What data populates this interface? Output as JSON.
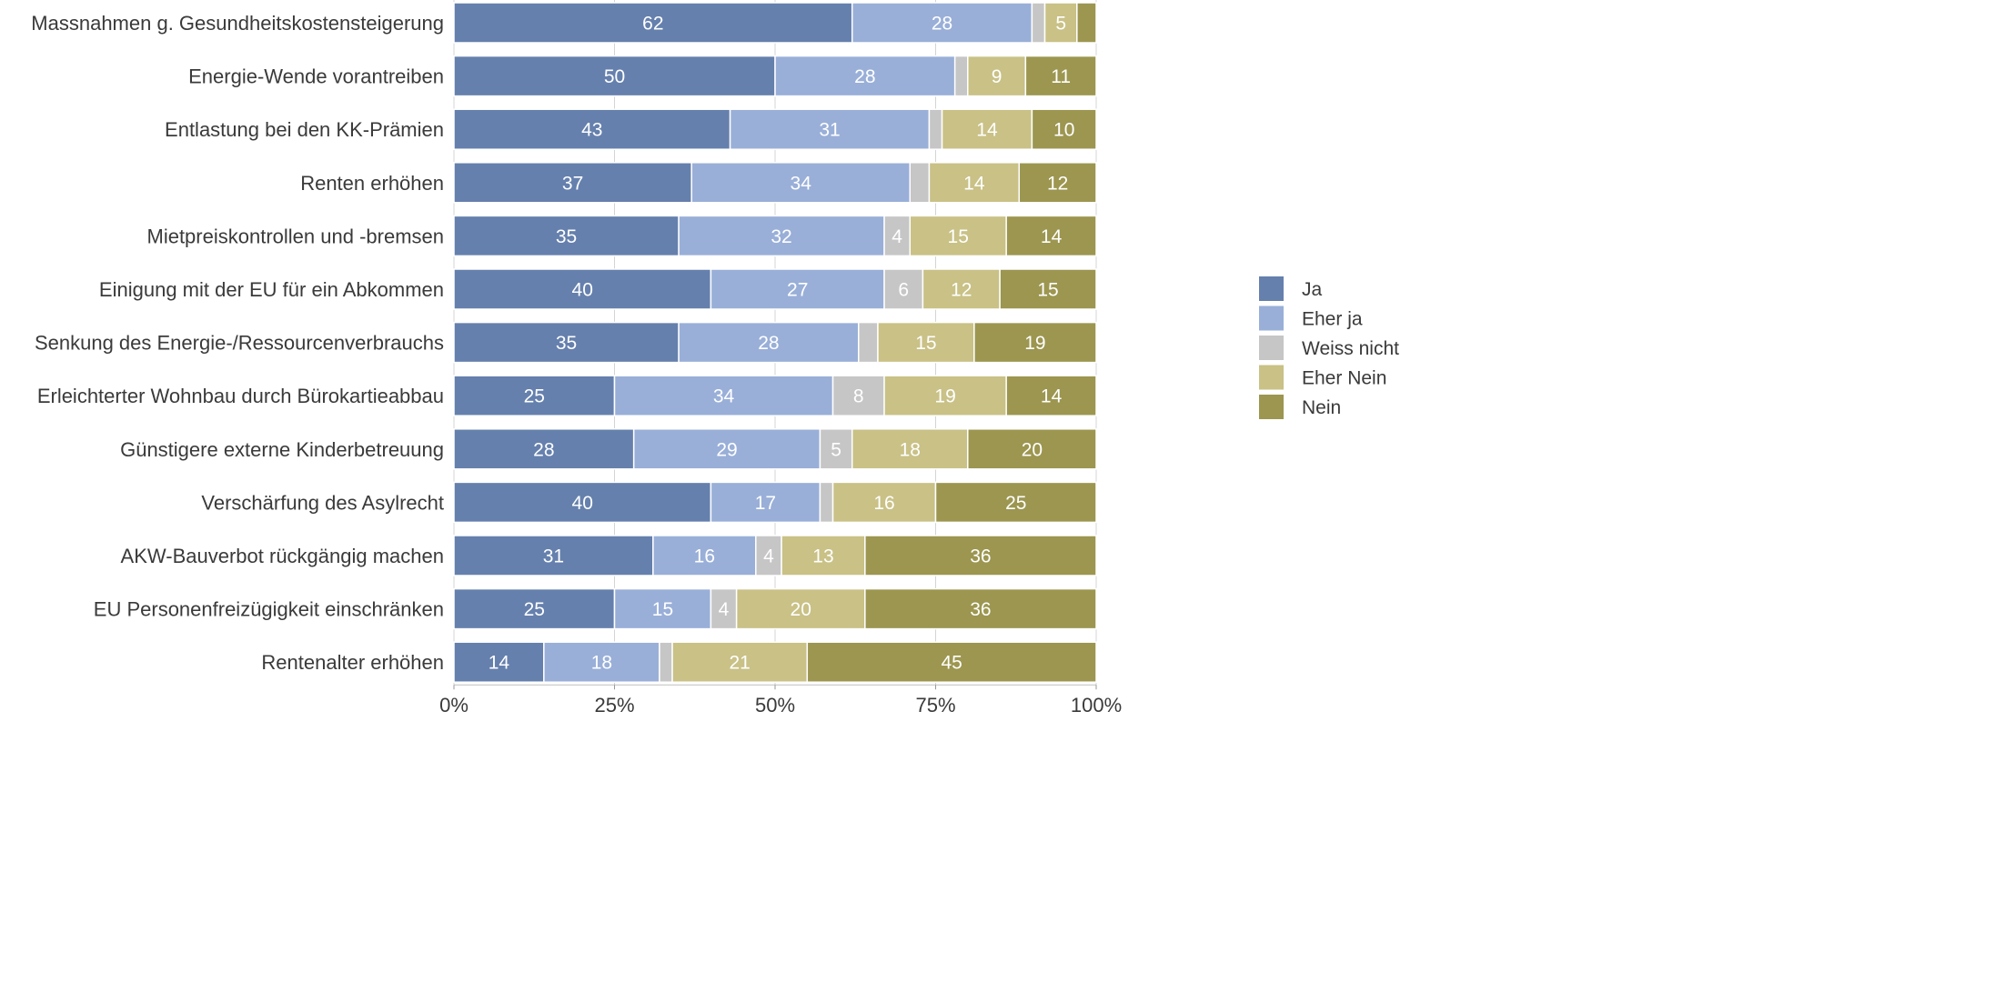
{
  "chart_data": {
    "type": "bar",
    "orientation": "horizontal",
    "stacked": true,
    "percent_stacked": true,
    "title": "",
    "xlabel": "",
    "ylabel": "",
    "xlim": [
      0,
      100
    ],
    "x_ticks": [
      0,
      25,
      50,
      75,
      100
    ],
    "x_tick_labels": [
      "0%",
      "25%",
      "50%",
      "75%",
      "100%"
    ],
    "grid": true,
    "legend_position": "right",
    "categories": [
      "Massnahmen g. Gesundheitskostensteigerung",
      "Energie-Wende vorantreiben",
      "Entlastung bei den KK-Prämien",
      "Renten erhöhen",
      "Mietpreiskontrollen und -bremsen",
      "Einigung mit der EU für ein Abkommen",
      "Senkung des Energie-/Ressourcenverbrauchs",
      "Erleichterter Wohnbau durch Bürokartieabbau",
      "Günstigere externe Kinderbetreuung",
      "Verschärfung des Asylrecht",
      "AKW-Bauverbot rückgängig machen",
      "EU Personenfreizügigkeit einschränken",
      "Rentenalter erhöhen"
    ],
    "series": [
      {
        "name": "Ja",
        "color": "#6580ad",
        "label_color": "#ffffff",
        "values": [
          62,
          50,
          43,
          37,
          35,
          40,
          35,
          25,
          28,
          40,
          31,
          25,
          14
        ],
        "labels": [
          "62",
          "50",
          "43",
          "37",
          "35",
          "40",
          "35",
          "25",
          "28",
          "40",
          "31",
          "25",
          "14"
        ]
      },
      {
        "name": "Eher ja",
        "color": "#99afd8",
        "label_color": "#ffffff",
        "values": [
          28,
          28,
          31,
          34,
          32,
          27,
          28,
          34,
          29,
          17,
          16,
          15,
          18
        ],
        "labels": [
          "28",
          "28",
          "31",
          "34",
          "32",
          "27",
          "28",
          "34",
          "29",
          "17",
          "16",
          "15",
          "18"
        ]
      },
      {
        "name": "Weiss nicht",
        "color": "#c6c6c6",
        "label_color": "#ffffff",
        "values": [
          2,
          2,
          2,
          3,
          4,
          6,
          3,
          8,
          5,
          2,
          4,
          4,
          2
        ],
        "labels": [
          "",
          "",
          "",
          "",
          "4",
          "6",
          "",
          "8",
          "5",
          "",
          "4",
          "4",
          ""
        ]
      },
      {
        "name": "Eher Nein",
        "color": "#c9c186",
        "label_color": "#ffffff",
        "values": [
          5,
          9,
          14,
          14,
          15,
          12,
          15,
          19,
          18,
          16,
          13,
          20,
          21
        ],
        "labels": [
          "5",
          "9",
          "14",
          "14",
          "15",
          "12",
          "15",
          "19",
          "18",
          "16",
          "13",
          "20",
          "21"
        ]
      },
      {
        "name": "Nein",
        "color": "#9c9650",
        "label_color": "#ffffff",
        "values": [
          3,
          11,
          10,
          12,
          14,
          15,
          19,
          14,
          20,
          25,
          36,
          36,
          45
        ],
        "labels": [
          "",
          "11",
          "10",
          "12",
          "14",
          "15",
          "19",
          "14",
          "20",
          "25",
          "36",
          "36",
          "45"
        ]
      }
    ]
  }
}
